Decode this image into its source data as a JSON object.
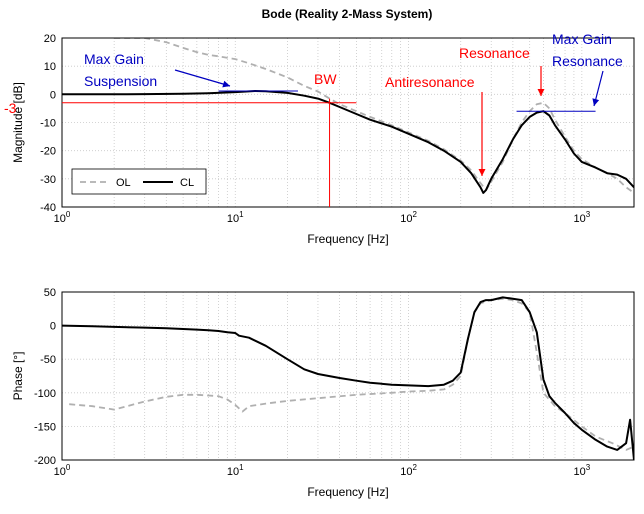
{
  "title": "Bode (Reality 2-Mass System)",
  "colors": {
    "ol": "#b0b0b0",
    "cl": "#000000",
    "red": "#ff0000",
    "blue": "#0000c0",
    "grid": "#c8c8c8"
  },
  "chart_data": [
    {
      "type": "line",
      "panel": "magnitude",
      "xscale": "log",
      "xlim": [
        1,
        2000
      ],
      "ylim": [
        -40,
        20
      ],
      "xlabel": "Frequency [Hz]",
      "ylabel": "Magnitude [dB]",
      "xtick_labels": [
        "10^0",
        "10^1",
        "10^2",
        "10^3"
      ],
      "yticks": [
        20,
        10,
        0,
        -10,
        -20,
        -30,
        -40
      ],
      "grid": true,
      "legend": {
        "position": "bottom-left",
        "entries": [
          "OL",
          "CL"
        ]
      },
      "series": [
        {
          "name": "OL",
          "style": "dashed",
          "x": [
            2,
            3,
            4,
            5,
            6,
            7,
            8,
            10,
            12,
            15,
            20,
            25,
            30,
            35,
            40,
            50,
            60,
            80,
            100,
            130,
            160,
            200,
            230,
            260,
            280,
            300,
            350,
            400,
            450,
            500,
            550,
            600,
            650,
            700,
            800,
            900,
            1000,
            1200,
            1400,
            1600,
            1800,
            2000
          ],
          "y": [
            20,
            20,
            18.5,
            16.5,
            15,
            14,
            13.5,
            12.5,
            11,
            9,
            6,
            3,
            1,
            -1.5,
            -3.5,
            -6,
            -8,
            -11,
            -13.5,
            -16.5,
            -19.5,
            -23.5,
            -27,
            -31.5,
            -34,
            -31,
            -24,
            -16,
            -10,
            -6,
            -3.5,
            -3,
            -5,
            -9,
            -15,
            -20,
            -23,
            -26,
            -28,
            -30,
            -33,
            -35
          ]
        },
        {
          "name": "CL",
          "style": "solid",
          "x": [
            1,
            2,
            3,
            5,
            7,
            10,
            13,
            15,
            20,
            25,
            30,
            35,
            40,
            50,
            60,
            80,
            100,
            130,
            160,
            200,
            230,
            260,
            270,
            280,
            300,
            350,
            400,
            450,
            500,
            550,
            600,
            650,
            700,
            800,
            900,
            1000,
            1200,
            1400,
            1600,
            1800,
            2000
          ],
          "y": [
            0,
            0,
            0.1,
            0.2,
            0.4,
            0.8,
            1.2,
            1.1,
            0.5,
            -0.5,
            -1.5,
            -3,
            -4.5,
            -7,
            -9,
            -11.5,
            -14,
            -17,
            -20,
            -24,
            -28,
            -33,
            -35,
            -34,
            -30,
            -23,
            -16,
            -11,
            -8,
            -6.5,
            -6,
            -7.5,
            -11,
            -16,
            -21,
            -24,
            -26,
            -28,
            -28.5,
            -30,
            -33
          ]
        }
      ],
      "annotations": [
        {
          "text": "Max Gain",
          "color": "blue"
        },
        {
          "text": "Suspension",
          "color": "blue"
        },
        {
          "text": "BW",
          "color": "red"
        },
        {
          "text": "-3",
          "color": "red"
        },
        {
          "text": "Antiresonance",
          "color": "red"
        },
        {
          "text": "Resonance",
          "color": "red"
        },
        {
          "text": "Max Gain",
          "color": "blue"
        },
        {
          "text": "Resonance",
          "color": "blue"
        }
      ]
    },
    {
      "type": "line",
      "panel": "phase",
      "xscale": "log",
      "xlim": [
        1,
        2000
      ],
      "ylim": [
        -200,
        50
      ],
      "xlabel": "Frequency [Hz]",
      "ylabel": "Phase [°]",
      "xtick_labels": [
        "10^0",
        "10^1",
        "10^2",
        "10^3"
      ],
      "yticks": [
        50,
        0,
        -50,
        -100,
        -150,
        -200
      ],
      "grid": true,
      "series": [
        {
          "name": "OL",
          "style": "dashed",
          "x": [
            1.1,
            1.5,
            2,
            3,
            4,
            5,
            6,
            7,
            8,
            9,
            10,
            11,
            12,
            15,
            20,
            30,
            50,
            80,
            100,
            130,
            160,
            180,
            200,
            220,
            240,
            260,
            280,
            300,
            350,
            400,
            450,
            500,
            550,
            600,
            700,
            800,
            1000,
            1200,
            1500,
            1800,
            2000
          ],
          "y": [
            -117,
            -120,
            -125,
            -113,
            -106,
            -103,
            -103,
            -104,
            -105,
            -110,
            -118,
            -128,
            -120,
            -116,
            -112,
            -108,
            -103,
            -100,
            -98,
            -97,
            -95,
            -88,
            -75,
            -20,
            20,
            33,
            36,
            38,
            40,
            38,
            33,
            20,
            -40,
            -100,
            -120,
            -130,
            -150,
            -165,
            -175,
            -185,
            -180
          ]
        },
        {
          "name": "CL",
          "style": "solid",
          "x": [
            1,
            1.5,
            2,
            3,
            4,
            5,
            6,
            7,
            8,
            9,
            10,
            10.5,
            12,
            15,
            20,
            25,
            30,
            40,
            50,
            60,
            80,
            100,
            130,
            160,
            180,
            200,
            220,
            240,
            260,
            280,
            300,
            350,
            400,
            450,
            500,
            550,
            600,
            650,
            700,
            800,
            900,
            1000,
            1200,
            1400,
            1600,
            1800,
            1900,
            2000
          ],
          "y": [
            0,
            -1,
            -2,
            -3,
            -4,
            -5,
            -6,
            -7,
            -8,
            -10,
            -11,
            -15,
            -18,
            -30,
            -50,
            -65,
            -72,
            -78,
            -82,
            -85,
            -88,
            -89,
            -90,
            -88,
            -82,
            -70,
            -20,
            20,
            35,
            38,
            38,
            42,
            40,
            38,
            20,
            -10,
            -80,
            -105,
            -115,
            -130,
            -145,
            -155,
            -170,
            -180,
            -185,
            -175,
            -140,
            -200
          ]
        }
      ]
    }
  ]
}
